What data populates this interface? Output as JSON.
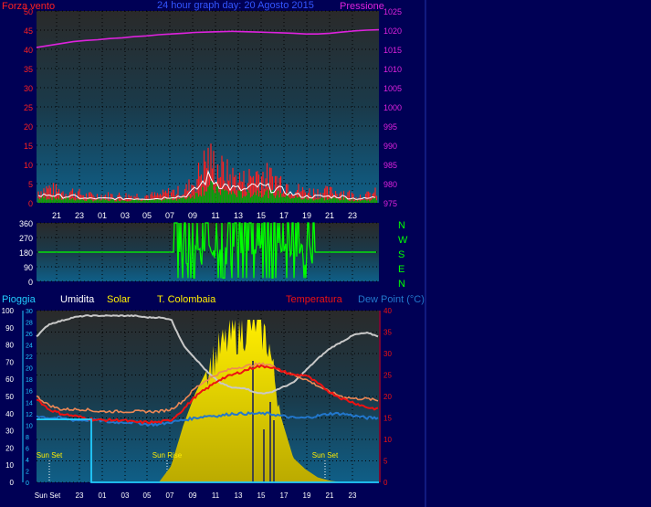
{
  "top": {
    "left_label": "Forza vento",
    "title": "24 hour graph day: 20 Agosto 2015",
    "right_label": "Pressione",
    "y_left_ticks": [
      "50",
      "45",
      "40",
      "35",
      "30",
      "25",
      "20",
      "15",
      "10",
      "5",
      "0"
    ],
    "y_right_ticks": [
      "1025",
      "1020",
      "1015",
      "1010",
      "1005",
      "1000",
      "995",
      "990",
      "985",
      "980",
      "975"
    ]
  },
  "mid": {
    "y_ticks": [
      "360",
      "270",
      "180",
      "90",
      "0"
    ],
    "compass": [
      "N",
      "W",
      "S",
      "E",
      "N"
    ]
  },
  "x_ticks": [
    "21",
    "23",
    "01",
    "03",
    "05",
    "07",
    "09",
    "11",
    "13",
    "15",
    "17",
    "19",
    "21",
    "23"
  ],
  "bottom": {
    "labels": {
      "rain": "Pioggia",
      "humidity": "Umidita",
      "solar": "Solar",
      "tcolombaia": "T. Colombaia",
      "temperature": "Temperatura",
      "dewpoint": "Dew Point (°C)"
    },
    "y_left_outer": [
      "100",
      "90",
      "80",
      "70",
      "60",
      "50",
      "40",
      "30",
      "20",
      "10",
      "0"
    ],
    "y_left_inner": [
      "30",
      "28",
      "26",
      "24",
      "22",
      "20",
      "18",
      "16",
      "14",
      "12",
      "10",
      "8",
      "6",
      "4",
      "2",
      "0"
    ],
    "y_right": [
      "40",
      "35",
      "30",
      "25",
      "20",
      "15",
      "10",
      "5",
      "0"
    ],
    "sun_labels": [
      "Sun Set",
      "Sun Rise",
      "Sun Set"
    ],
    "x_ticks": [
      "Sun Set",
      "23",
      "01",
      "03",
      "05",
      "07",
      "09",
      "11",
      "13",
      "15",
      "17",
      "19",
      "21",
      "23"
    ]
  },
  "colors": {
    "background": "#000055",
    "wind": "#ff2020",
    "gust": "#ffffff",
    "avg_wind": "#00aa00",
    "pressure": "#dd22dd",
    "direction": "#00ff00",
    "humidity": "#c8c8c8",
    "solar": "#ffee00",
    "tcolombaia": "#ee8855",
    "temperature": "#ee1111",
    "dewpoint": "#2277cc",
    "rain": "#22ccff"
  },
  "chart_data": [
    {
      "type": "line",
      "title": "24 hour graph day: 20 Agosto 2015",
      "x": [
        "20",
        "21",
        "22",
        "23",
        "00",
        "01",
        "02",
        "03",
        "04",
        "05",
        "06",
        "07",
        "08",
        "09",
        "10",
        "11",
        "12",
        "13",
        "14",
        "15",
        "16",
        "17",
        "18",
        "19",
        "20",
        "21",
        "22",
        "23",
        "24"
      ],
      "series": [
        {
          "name": "Forza vento",
          "axis": "left",
          "values": [
            3,
            4,
            3,
            3,
            2,
            2,
            2,
            2,
            2,
            2,
            2,
            3,
            3,
            6,
            12,
            9,
            7,
            6,
            8,
            7,
            6,
            4,
            3,
            3,
            3,
            3,
            2,
            2,
            3
          ]
        },
        {
          "name": "Pressione",
          "axis": "right",
          "values": [
            1015.5,
            1016,
            1016.5,
            1017,
            1017.3,
            1017.5,
            1017.8,
            1018,
            1018.3,
            1018.5,
            1018.8,
            1019,
            1019.2,
            1019.4,
            1019.5,
            1019.6,
            1019.7,
            1019.6,
            1019.5,
            1019.4,
            1019.3,
            1019.2,
            1019,
            1019,
            1019.2,
            1019.5,
            1019.8,
            1020,
            1020.1
          ]
        }
      ],
      "ylim_left": [
        0,
        50
      ],
      "ylim_right": [
        975,
        1025
      ]
    },
    {
      "type": "line",
      "series": [
        {
          "name": "direction",
          "values": [
            180,
            180,
            180,
            180,
            180,
            180,
            180,
            180,
            180,
            180,
            180,
            180,
            240,
            200,
            210,
            190,
            220,
            200,
            230,
            200,
            170,
            240,
            200,
            180,
            180,
            180,
            180,
            180,
            180
          ]
        }
      ],
      "ylim": [
        0,
        360
      ]
    },
    {
      "type": "line",
      "x": [
        "20",
        "21",
        "22",
        "23",
        "00",
        "01",
        "02",
        "03",
        "04",
        "05",
        "06",
        "07",
        "08",
        "09",
        "10",
        "11",
        "12",
        "13",
        "14",
        "15",
        "16",
        "17",
        "18",
        "19",
        "20",
        "21",
        "22",
        "23",
        "24"
      ],
      "series": [
        {
          "name": "Umidita",
          "axis": "outer",
          "values": [
            85,
            92,
            94,
            96,
            97,
            97,
            97,
            97,
            97,
            96,
            96,
            95,
            80,
            72,
            64,
            58,
            55,
            55,
            52,
            52,
            55,
            58,
            65,
            72,
            78,
            82,
            86,
            87,
            85
          ]
        },
        {
          "name": "Solar",
          "values": [
            0,
            0,
            0,
            0,
            0,
            0,
            0,
            0,
            0,
            0,
            0,
            10,
            35,
            55,
            70,
            82,
            90,
            94,
            100,
            85,
            40,
            15,
            8,
            3,
            1,
            0,
            0,
            0,
            0
          ]
        },
        {
          "name": "T. Colombaia",
          "axis": "right",
          "values": [
            20,
            18,
            17,
            17,
            17,
            16.5,
            16.5,
            16.5,
            16.5,
            16.5,
            16.5,
            17,
            19,
            22,
            24,
            25.5,
            26.5,
            27,
            27.5,
            27.5,
            26,
            25,
            24,
            22.5,
            21,
            20,
            19.5,
            19.5,
            19
          ]
        },
        {
          "name": "Temperatura",
          "axis": "right",
          "values": [
            19.5,
            17,
            16,
            15.5,
            15,
            14.5,
            14.5,
            14.5,
            14,
            14,
            14,
            14.5,
            17,
            20,
            22,
            24,
            25,
            26,
            27,
            27,
            26,
            25,
            25,
            23,
            21,
            19.5,
            18.5,
            17.5,
            17
          ]
        },
        {
          "name": "Dew Point (°C)",
          "axis": "right",
          "values": [
            15.5,
            15,
            15,
            14.5,
            14.5,
            14.5,
            14,
            14,
            14,
            13.5,
            13.5,
            14,
            14.5,
            15,
            15.5,
            15.5,
            16,
            16,
            16,
            16,
            15.5,
            15,
            15,
            15.5,
            16,
            16,
            15.5,
            15,
            15
          ]
        },
        {
          "name": "Pioggia",
          "axis": "inner",
          "values": [
            11,
            11,
            11,
            11,
            11,
            0,
            0,
            0,
            0,
            0,
            0,
            0,
            0,
            0,
            0,
            0,
            0,
            0,
            0,
            0,
            0,
            0,
            0,
            0,
            0,
            0,
            0,
            0,
            0
          ]
        }
      ],
      "ylim_outer": [
        0,
        100
      ],
      "ylim_inner": [
        0,
        30
      ],
      "ylim_right": [
        0,
        40
      ]
    }
  ]
}
